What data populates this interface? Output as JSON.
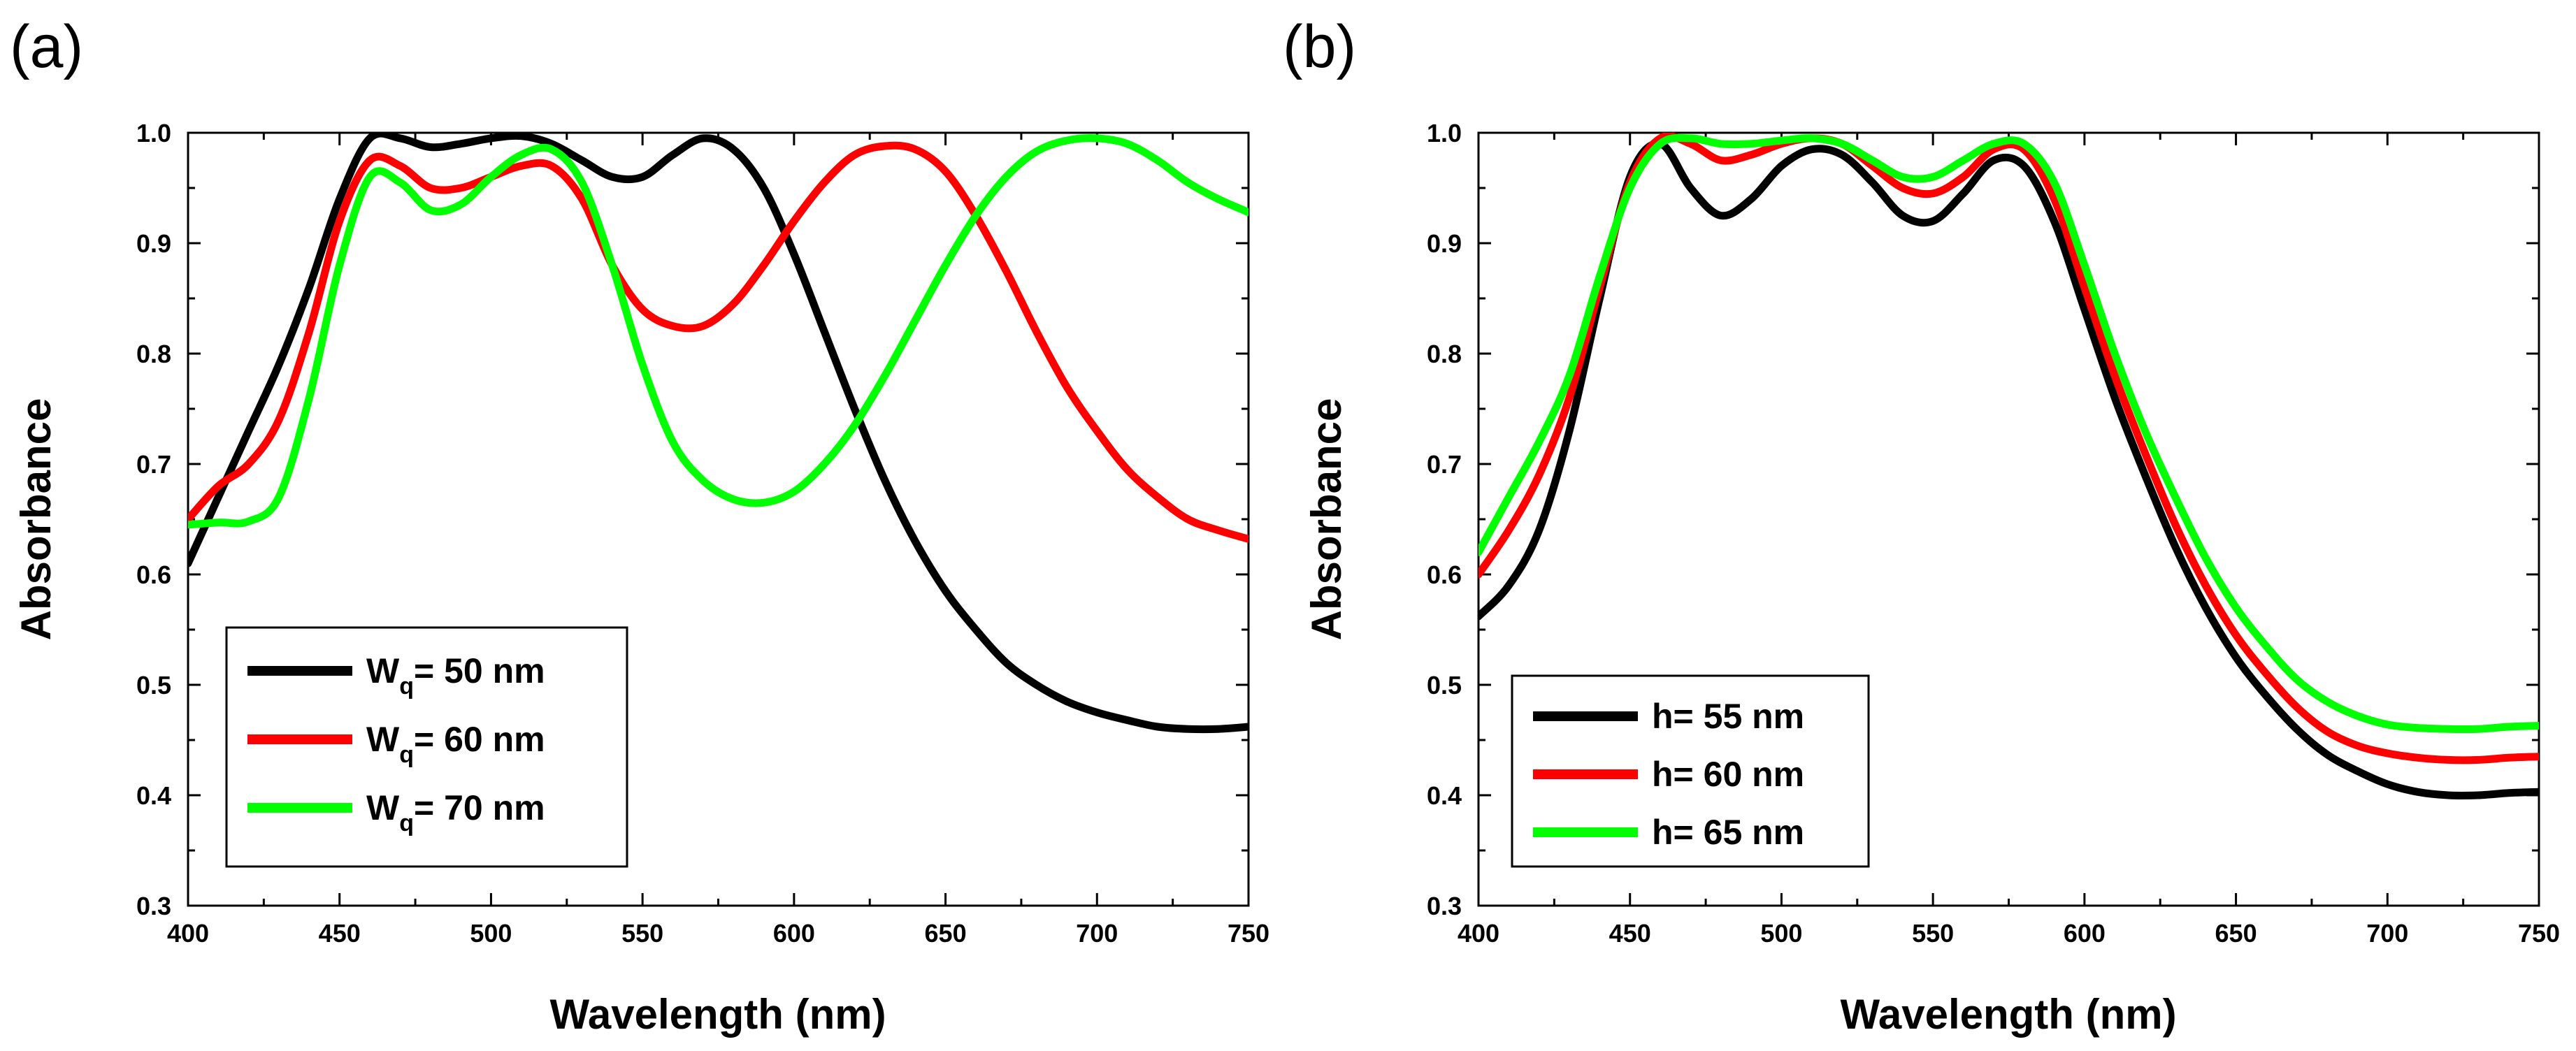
{
  "chart_data": [
    {
      "type": "line",
      "panel_label": "(a)",
      "xlabel": "Wavelength (nm)",
      "ylabel": "Absorbance",
      "xlim": [
        400,
        750
      ],
      "ylim": [
        0.3,
        1.0
      ],
      "xticks": [
        400,
        450,
        500,
        550,
        600,
        650,
        700,
        750
      ],
      "yticks": [
        0.3,
        0.4,
        0.5,
        0.6,
        0.7,
        0.8,
        0.9,
        1.0
      ],
      "legend_position": "bottom-left",
      "series": [
        {
          "name": "W_q = 50 nm",
          "label_main": "W",
          "label_sub": "q",
          "label_rest": "= 50 nm",
          "color": "#000000",
          "x": [
            400,
            410,
            420,
            430,
            440,
            450,
            460,
            470,
            480,
            490,
            500,
            510,
            520,
            530,
            540,
            550,
            560,
            570,
            580,
            590,
            600,
            610,
            620,
            630,
            640,
            650,
            660,
            670,
            680,
            690,
            700,
            710,
            720,
            730,
            740,
            750
          ],
          "y": [
            0.61,
            0.67,
            0.73,
            0.79,
            0.86,
            0.94,
            0.995,
            0.995,
            0.987,
            0.99,
            0.995,
            0.997,
            0.99,
            0.975,
            0.96,
            0.96,
            0.98,
            0.995,
            0.985,
            0.95,
            0.89,
            0.82,
            0.75,
            0.685,
            0.63,
            0.585,
            0.55,
            0.52,
            0.5,
            0.485,
            0.475,
            0.468,
            0.462,
            0.46,
            0.46,
            0.462
          ]
        },
        {
          "name": "W_q = 60 nm",
          "label_main": "W",
          "label_sub": "q",
          "label_rest": "= 60 nm",
          "color": "#ff0000",
          "x": [
            400,
            410,
            420,
            430,
            440,
            450,
            460,
            470,
            480,
            490,
            500,
            510,
            520,
            530,
            540,
            550,
            560,
            570,
            580,
            590,
            600,
            610,
            620,
            630,
            640,
            650,
            660,
            670,
            680,
            690,
            700,
            710,
            720,
            730,
            740,
            750
          ],
          "y": [
            0.65,
            0.68,
            0.7,
            0.74,
            0.82,
            0.92,
            0.975,
            0.97,
            0.95,
            0.95,
            0.96,
            0.97,
            0.97,
            0.94,
            0.88,
            0.84,
            0.825,
            0.825,
            0.845,
            0.88,
            0.92,
            0.955,
            0.98,
            0.988,
            0.985,
            0.965,
            0.925,
            0.875,
            0.82,
            0.77,
            0.73,
            0.695,
            0.67,
            0.65,
            0.64,
            0.632
          ]
        },
        {
          "name": "W_q = 70 nm",
          "label_main": "W",
          "label_sub": "q",
          "label_rest": "= 70 nm",
          "color": "#00ff00",
          "x": [
            400,
            410,
            420,
            430,
            440,
            450,
            460,
            470,
            480,
            490,
            500,
            510,
            520,
            530,
            540,
            550,
            560,
            570,
            580,
            590,
            600,
            610,
            620,
            630,
            640,
            650,
            660,
            670,
            680,
            690,
            700,
            710,
            720,
            730,
            740,
            750
          ],
          "y": [
            0.645,
            0.647,
            0.648,
            0.67,
            0.76,
            0.88,
            0.96,
            0.955,
            0.93,
            0.935,
            0.96,
            0.98,
            0.985,
            0.955,
            0.88,
            0.79,
            0.72,
            0.685,
            0.668,
            0.665,
            0.675,
            0.7,
            0.735,
            0.78,
            0.83,
            0.88,
            0.925,
            0.96,
            0.983,
            0.993,
            0.995,
            0.99,
            0.975,
            0.955,
            0.94,
            0.928
          ]
        }
      ]
    },
    {
      "type": "line",
      "panel_label": "(b)",
      "xlabel": "Wavelength (nm)",
      "ylabel": "Absorbance",
      "xlim": [
        400,
        750
      ],
      "ylim": [
        0.3,
        1.0
      ],
      "xticks": [
        400,
        450,
        500,
        550,
        600,
        650,
        700,
        750
      ],
      "yticks": [
        0.3,
        0.4,
        0.5,
        0.6,
        0.7,
        0.8,
        0.9,
        1.0
      ],
      "legend_position": "bottom-left",
      "series": [
        {
          "name": "h= 55 nm",
          "label_main": "h= 55 nm",
          "label_sub": "",
          "label_rest": "",
          "color": "#000000",
          "x": [
            400,
            410,
            420,
            430,
            440,
            450,
            460,
            470,
            480,
            490,
            500,
            510,
            520,
            530,
            540,
            550,
            560,
            570,
            580,
            590,
            600,
            610,
            620,
            630,
            640,
            650,
            660,
            670,
            680,
            690,
            700,
            710,
            720,
            730,
            740,
            750
          ],
          "y": [
            0.562,
            0.59,
            0.64,
            0.73,
            0.85,
            0.96,
            0.99,
            0.95,
            0.925,
            0.94,
            0.97,
            0.985,
            0.98,
            0.955,
            0.925,
            0.92,
            0.945,
            0.975,
            0.97,
            0.92,
            0.84,
            0.76,
            0.69,
            0.625,
            0.57,
            0.525,
            0.49,
            0.46,
            0.437,
            0.422,
            0.41,
            0.403,
            0.4,
            0.4,
            0.402,
            0.403
          ]
        },
        {
          "name": "h= 60 nm",
          "label_main": "h= 60 nm",
          "label_sub": "",
          "label_rest": "",
          "color": "#ff0000",
          "x": [
            400,
            410,
            420,
            430,
            440,
            450,
            460,
            470,
            480,
            490,
            500,
            510,
            520,
            530,
            540,
            550,
            560,
            570,
            580,
            590,
            600,
            610,
            620,
            630,
            640,
            650,
            660,
            670,
            680,
            690,
            700,
            710,
            720,
            730,
            740,
            750
          ],
          "y": [
            0.6,
            0.64,
            0.69,
            0.76,
            0.86,
            0.955,
            0.995,
            0.99,
            0.975,
            0.98,
            0.99,
            0.995,
            0.99,
            0.97,
            0.95,
            0.945,
            0.96,
            0.985,
            0.985,
            0.94,
            0.86,
            0.78,
            0.71,
            0.645,
            0.59,
            0.545,
            0.51,
            0.48,
            0.458,
            0.445,
            0.438,
            0.434,
            0.432,
            0.432,
            0.434,
            0.435
          ]
        },
        {
          "name": "h= 65 nm",
          "label_main": "h= 65 nm",
          "label_sub": "",
          "label_rest": "",
          "color": "#00ff00",
          "x": [
            400,
            410,
            420,
            430,
            440,
            450,
            460,
            470,
            480,
            490,
            500,
            510,
            520,
            530,
            540,
            550,
            560,
            570,
            580,
            590,
            600,
            610,
            620,
            630,
            640,
            650,
            660,
            670,
            680,
            690,
            700,
            710,
            720,
            730,
            740,
            750
          ],
          "y": [
            0.62,
            0.67,
            0.72,
            0.78,
            0.87,
            0.95,
            0.99,
            0.995,
            0.99,
            0.99,
            0.993,
            0.995,
            0.99,
            0.975,
            0.96,
            0.96,
            0.975,
            0.99,
            0.99,
            0.955,
            0.88,
            0.8,
            0.73,
            0.67,
            0.615,
            0.57,
            0.535,
            0.505,
            0.485,
            0.472,
            0.464,
            0.461,
            0.46,
            0.46,
            0.462,
            0.463
          ]
        }
      ]
    }
  ]
}
